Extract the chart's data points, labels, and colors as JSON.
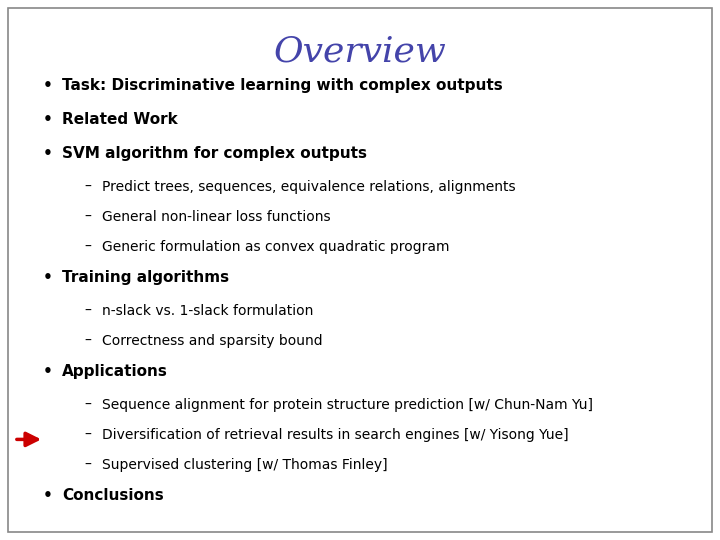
{
  "title": "Overview",
  "title_color": "#4444aa",
  "title_fontsize": 26,
  "title_font": "serif",
  "background_color": "#ffffff",
  "border_color": "#888888",
  "bullet_color": "#000000",
  "text_color": "#000000",
  "arrow_color": "#cc0000",
  "items": [
    {
      "level": 0,
      "bold": true,
      "text": "Task: Discriminative learning with complex outputs"
    },
    {
      "level": 0,
      "bold": true,
      "text": "Related Work"
    },
    {
      "level": 0,
      "bold": true,
      "text": "SVM algorithm for complex outputs"
    },
    {
      "level": 1,
      "bold": false,
      "text": "Predict trees, sequences, equivalence relations, alignments"
    },
    {
      "level": 1,
      "bold": false,
      "text": "General non-linear loss functions"
    },
    {
      "level": 1,
      "bold": false,
      "text": "Generic formulation as convex quadratic program"
    },
    {
      "level": 0,
      "bold": true,
      "text": "Training algorithms"
    },
    {
      "level": 1,
      "bold": false,
      "text": "n-slack vs. 1-slack formulation"
    },
    {
      "level": 1,
      "bold": false,
      "text": "Correctness and sparsity bound"
    },
    {
      "level": 0,
      "bold": true,
      "text": "Applications"
    },
    {
      "level": 1,
      "bold": false,
      "arrow": false,
      "text": "Sequence alignment for protein structure prediction [w/ Chun-Nam Yu]"
    },
    {
      "level": 1,
      "bold": false,
      "arrow": true,
      "text": "Diversification of retrieval results in search engines [w/ Yisong Yue]"
    },
    {
      "level": 1,
      "bold": false,
      "arrow": false,
      "text": "Supervised clustering [w/ Thomas Finley]"
    },
    {
      "level": 0,
      "bold": true,
      "text": "Conclusions"
    }
  ],
  "bullet_char": "•",
  "sub_bullet_char": "–",
  "fontsize_bullet": 11.0,
  "fontsize_sub": 10.0,
  "font_family": "DejaVu Sans"
}
